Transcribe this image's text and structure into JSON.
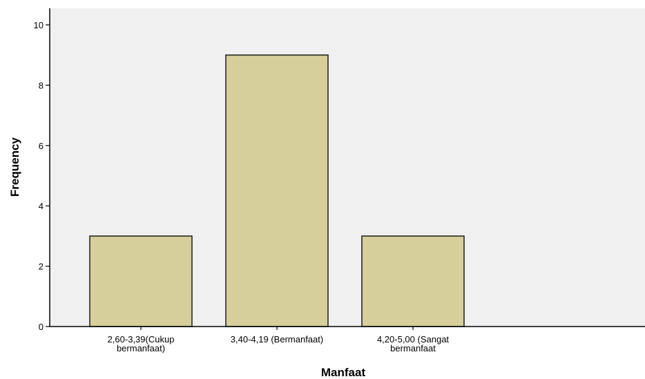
{
  "colors": {
    "plot_background": "#f0f0f0",
    "bar_fill": "#d6cf9b",
    "bar_stroke": "#1a1a1a",
    "axis": "#000000"
  },
  "chart_data": {
    "type": "bar",
    "categories": [
      [
        "2,60-3,39(Cukup",
        "bermanfaat)"
      ],
      [
        "3,40-4,19 (Bermanfaat)"
      ],
      [
        "4,20-5,00 (Sangat",
        "bermanfaat"
      ]
    ],
    "values": [
      3,
      9,
      3
    ],
    "xlabel": "Manfaat",
    "ylabel": "Frequency",
    "ylim": [
      0,
      10
    ],
    "yticks": [
      0,
      2,
      4,
      6,
      8,
      10
    ],
    "grid": false
  }
}
